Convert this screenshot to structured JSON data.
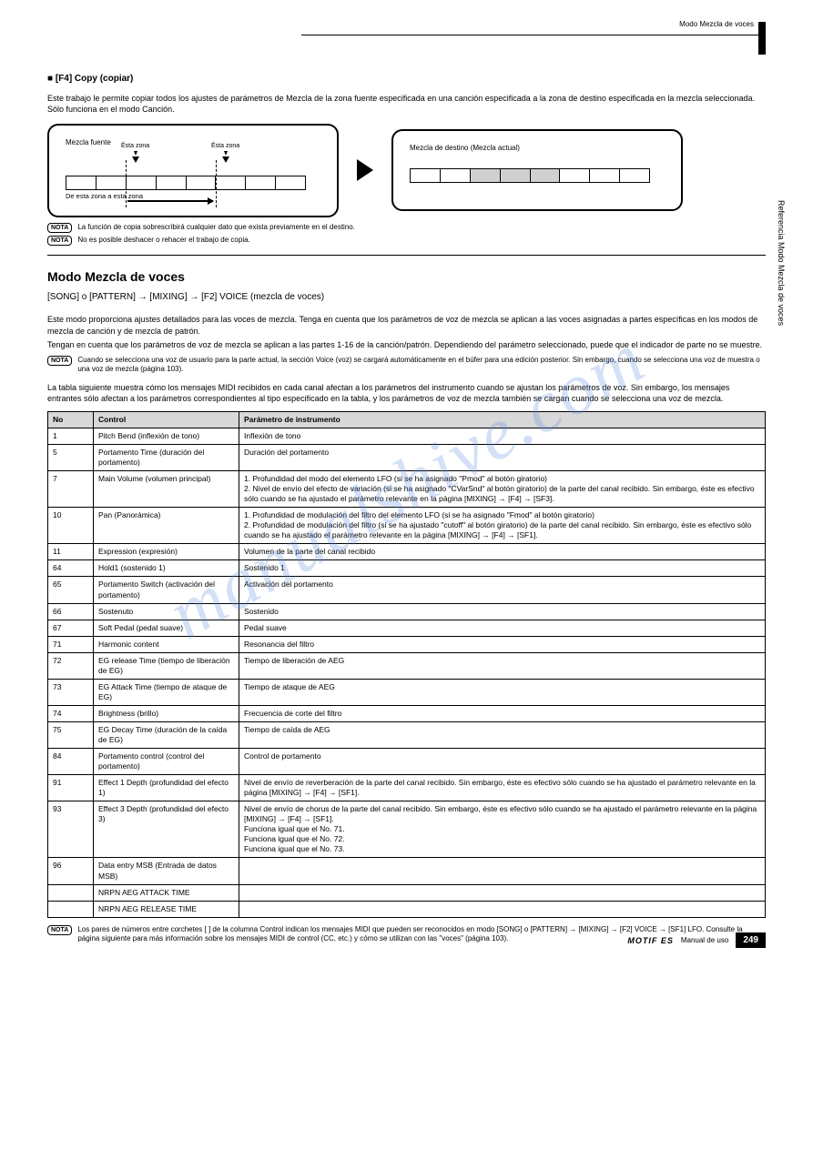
{
  "header": {
    "category": "Modo Mezcla de voces",
    "tab_marker": "■"
  },
  "section": {
    "heading": "■ [F4] Copy (copiar)",
    "body": "Este trabajo le permite copiar todos los ajustes de parámetros de Mezcla de la zona fuente especificada en una canción especificada a la zona de destino especificada en la mezcla seleccionada.\nSólo funciona en el modo Canción.",
    "diagram_left": {
      "title": "Mezcla fuente",
      "under": "De esta zona a esta zona",
      "marker1": "Ésta zona",
      "marker2": "Ésta zona"
    },
    "diagram_right": {
      "title": "Mezcla de destino (Mezcla actual)"
    },
    "nota1": "La función de copia sobrescribirá cualquier dato que exista previamente en el destino.",
    "nota2": "No es posible deshacer o rehacer el trabajo de copia."
  },
  "voice_mode": {
    "title": "Modo Mezcla de voces",
    "tag": "[SONG] o [PATTERN] → [MIXING] → [F2] VOICE (mezcla de voces)",
    "p1": "Este modo proporciona ajustes detallados para las voces de mezcla. Tenga en cuenta que los parámetros de voz de mezcla se aplican a las voces asignadas a partes específicas en los modos de mezcla de canción y de mezcla de patrón.",
    "p2": "Tengan en cuenta que los parámetros de voz de mezcla se aplican a las partes 1-16 de la canción/patrón. Dependiendo del parámetro seleccionado, puede que el indicador de parte no se muestre.",
    "nota": "Cuando se selecciona una voz de usuario para la parte actual, la sección Voice (voz) se cargará automáticamente en el búfer para una edición posterior. Sin embargo, cuando se selecciona una voz de muestra o una voz de mezcla (página 103).",
    "p3": "La tabla siguiente muestra cómo los mensajes MIDI recibidos en cada canal afectan a los parámetros del instrumento cuando se ajustan los parámetros de voz. Sin embargo, los mensajes entrantes sólo afectan a los parámetros correspondientes al tipo especificado en la tabla, y los parámetros de voz de mezcla también se cargan cuando se selecciona una voz de mezcla.",
    "columns": [
      "No",
      "Control",
      "Parámetro de instrumento"
    ],
    "rows": [
      [
        "1",
        "Pitch Bend (inflexión de tono)",
        "Inflexión de tono"
      ],
      [
        "5",
        "Portamento Time (duración del portamento)",
        "Duración del portamento"
      ],
      [
        "7",
        "Main Volume (volumen principal)",
        "1. Profundidad del modo del elemento LFO (si se ha asignado \"Pmod\" al botón giratorio)\n2. Nivel de envío del efecto de variación (si se ha asignado \"CVarSnd\" al botón giratorio) de la parte del canal recibido. Sin embargo, éste es efectivo sólo cuando se ha ajustado el parámetro relevante en la página [MIXING] → [F4] → [SF3]."
      ],
      [
        "10",
        "Pan (Panorámica)",
        "1. Profundidad de modulación del filtro del elemento LFO (si se ha asignado \"Fmod\" al botón giratorio)\n2. Profundidad de modulación del filtro (si se ha ajustado \"cutoff\" al botón giratorio) de la parte del canal recibido. Sin embargo, éste es efectivo sólo cuando se ha ajustado el parámetro relevante en la página [MIXING] → [F4] → [SF1]."
      ],
      [
        "11",
        "Expression (expresión)",
        "Volumen de la parte del canal recibido"
      ],
      [
        "64",
        "Hold1 (sostenido 1)",
        "Sostenido 1"
      ],
      [
        "65",
        "Portamento Switch (activación del portamento)",
        "Activación del portamento"
      ],
      [
        "66",
        "Sostenuto",
        "Sostenido"
      ],
      [
        "67",
        "Soft Pedal (pedal suave)",
        "Pedal suave"
      ],
      [
        "71",
        "Harmonic content",
        "Resonancia del filtro"
      ],
      [
        "72",
        "EG release Time (tiempo de liberación de EG)",
        "Tiempo de liberación de AEG"
      ],
      [
        "73",
        "EG Attack Time (tiempo de ataque de EG)",
        "Tiempo de ataque de AEG"
      ],
      [
        "74",
        "Brightness (brillo)",
        "Frecuencia de corte del filtro"
      ],
      [
        "75",
        "EG Decay Time (duración de la caída de EG)",
        "Tiempo de caída de AEG"
      ],
      [
        "84",
        "Portamento control (control del portamento)",
        "Control de portamento"
      ],
      [
        "91",
        "Effect 1 Depth (profundidad del efecto 1)",
        "Nivel de envío de reverberación de la parte del canal recibido. Sin embargo, éste es efectivo sólo cuando se ha ajustado el parámetro relevante en la página [MIXING] → [F4] → [SF1]."
      ],
      [
        "93",
        "Effect 3 Depth (profundidad del efecto 3)",
        "Nivel de envío de chorus de la parte del canal recibido. Sin embargo, éste es efectivo sólo cuando se ha ajustado el parámetro relevante en la página [MIXING] → [F4] → [SF1].\nFunciona igual que el No. 71.\nFunciona igual que el No. 72.\nFunciona igual que el No. 73."
      ],
      [
        "96",
        "Data entry MSB (Entrada de datos MSB)",
        ""
      ],
      [
        "",
        "NRPN AEG ATTACK TIME",
        ""
      ],
      [
        "",
        "NRPN AEG RELEASE TIME",
        ""
      ]
    ],
    "footnote": "Los pares de números entre corchetes [ ] de la columna Control indican los mensajes MIDI que pueden ser reconocidos en modo [SONG] o [PATTERN] → [MIXING] → [F2] VOICE → [SF1] LFO. Consulte la página siguiente para más información sobre los mensajes MIDI de control (CC, etc.) y cómo se utilizan con las \"voces\" (página 103)."
  },
  "sidebar": "Referencia Modo Mezcla de voces",
  "footer": {
    "logo": "MOTIF ES",
    "manual": "Manual de uso",
    "page": "249"
  },
  "watermark": "manualshive.com"
}
